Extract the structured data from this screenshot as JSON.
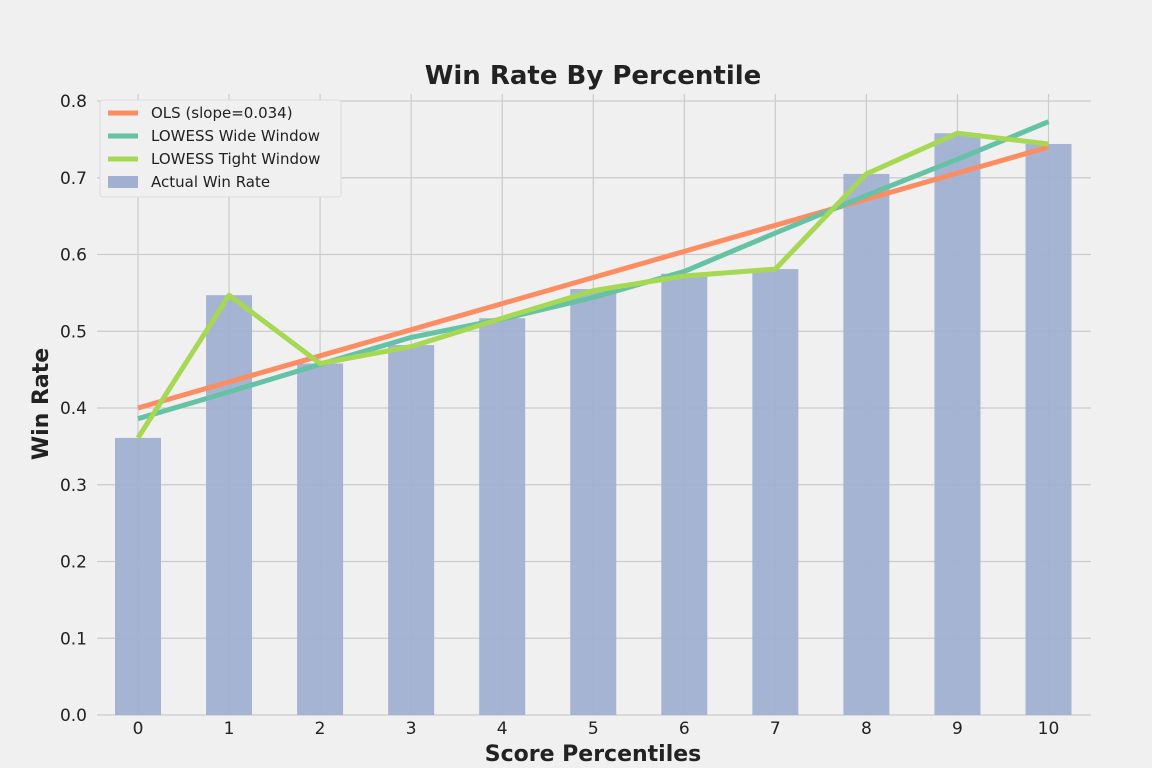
{
  "chart_data": {
    "type": "bar",
    "title": "Win Rate By Percentile",
    "xlabel": "Score Percentiles",
    "ylabel": "Win Rate",
    "categories": [
      "0",
      "1",
      "2",
      "3",
      "4",
      "5",
      "6",
      "7",
      "8",
      "9",
      "10"
    ],
    "ylim": [
      0,
      0.8
    ],
    "yticks": [
      "0.0",
      "0.1",
      "0.2",
      "0.3",
      "0.4",
      "0.5",
      "0.6",
      "0.7",
      "0.8"
    ],
    "grid": true,
    "legend_position": "top-left",
    "bars": {
      "name": "Actual Win Rate",
      "color": "#a1b0d1",
      "values": [
        0.361,
        0.547,
        0.458,
        0.482,
        0.517,
        0.555,
        0.575,
        0.581,
        0.705,
        0.758,
        0.744
      ]
    },
    "series": [
      {
        "name": "OLS (slope=0.034)",
        "color": "#fc8d62",
        "values": [
          0.4,
          0.434,
          0.468,
          0.502,
          0.536,
          0.57,
          0.604,
          0.638,
          0.672,
          0.706,
          0.74
        ]
      },
      {
        "name": "LOWESS Wide Window",
        "color": "#66c2a5",
        "values": [
          0.386,
          0.421,
          0.457,
          0.492,
          0.516,
          0.544,
          0.578,
          0.628,
          0.677,
          0.724,
          0.773
        ]
      },
      {
        "name": "LOWESS Tight Window",
        "color": "#a6d854",
        "values": [
          0.361,
          0.547,
          0.458,
          0.48,
          0.517,
          0.553,
          0.572,
          0.581,
          0.705,
          0.758,
          0.744
        ]
      }
    ]
  }
}
